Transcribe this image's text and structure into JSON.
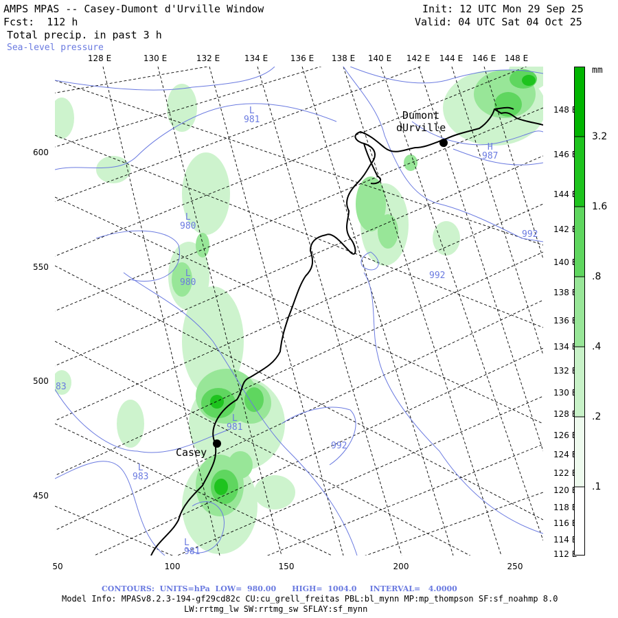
{
  "header": {
    "title": "AMPS MPAS -- Casey-Dumont d'Urville Window",
    "forecast": "Fcst:  112 h",
    "field": "Total precip. in past 3 h",
    "overlay": "Sea-level pressure",
    "init": "Init: 12 UTC Mon 29 Sep 25",
    "valid": "Valid: 04 UTC Sat 04 Oct 25"
  },
  "axes": {
    "top_longitudes": [
      "128 E",
      "130 E",
      "132 E",
      "134 E",
      "136 E",
      "138 E",
      "140 E",
      "142 E",
      "144 E",
      "146 E",
      "148 E"
    ],
    "right_longitudes": [
      "148 E",
      "146 E",
      "144 E",
      "142 E",
      "140 E",
      "138 E",
      "136 E",
      "134 E",
      "132 E",
      "130 E",
      "128 E",
      "126 E",
      "124 E",
      "122 E",
      "120 E",
      "118 E",
      "116 E",
      "114 E",
      "112 E"
    ],
    "left_ticks": [
      "600",
      "550",
      "500",
      "450"
    ],
    "bottom_ticks": [
      "50",
      "100",
      "150",
      "200",
      "250"
    ]
  },
  "places": {
    "casey": "Casey",
    "dumont": "Dumont\ndUrville"
  },
  "pressure_labels": [
    {
      "t": "L",
      "v": "981"
    },
    {
      "t": "L",
      "v": "980"
    },
    {
      "t": "L",
      "v": "980"
    },
    {
      "t": "H",
      "v": "987"
    },
    {
      "t": "",
      "v": "992"
    },
    {
      "t": "",
      "v": "992"
    },
    {
      "t": "L",
      "v": "981"
    },
    {
      "t": "",
      "v": "992"
    },
    {
      "t": "L",
      "v": "983"
    },
    {
      "t": "",
      "v": "83"
    },
    {
      "t": "L",
      "v": "981"
    }
  ],
  "colorbar": {
    "units": "mm",
    "levels": [
      ".1",
      ".2",
      ".4",
      ".8",
      "1.6",
      "3.2"
    ],
    "colors": [
      "#ffffff",
      "#eefaee",
      "#c8f2c8",
      "#98e698",
      "#5fd65f",
      "#1ec31e",
      "#00b400"
    ]
  },
  "footer": {
    "contours": "CONTOURS:  UNITS=hPa  LOW=  980.00      HIGH=  1004.0     INTERVAL=   4.0000",
    "model_info": "Model Info: MPASv8.2.3-194-gf29cd82c CU:cu_grell_freitas PBL:bl_mynn MP:mp_thompson SF:sf_noahmp 8.0",
    "physics": "LW:rrtmg_lw SW:rrtmg_sw SFLAY:sf_mynn"
  }
}
